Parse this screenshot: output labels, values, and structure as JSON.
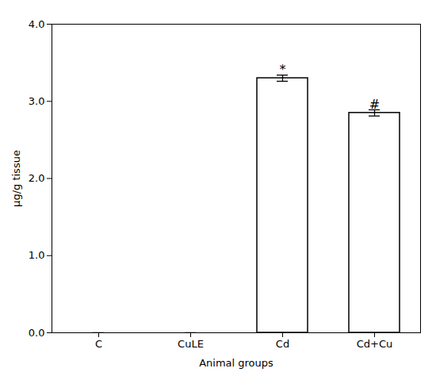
{
  "chart_data": {
    "type": "bar",
    "categories": [
      "C",
      "CuLE",
      "Cd",
      "Cd+Cu"
    ],
    "values": [
      0.0,
      0.0,
      3.3,
      2.85
    ],
    "errors": [
      0.0,
      0.0,
      0.04,
      0.04
    ],
    "color": "#ffffff",
    "annotations": [
      {
        "text": "*",
        "x": "Cd",
        "y": 3.36
      },
      {
        "text": "#",
        "x": "Cd+Cu",
        "y": 2.91
      }
    ],
    "xlabel": "Animal groups",
    "ylabel": "µg/g tissue",
    "ylim": [
      0,
      4
    ],
    "yticks": [
      0,
      1,
      2,
      3,
      4
    ],
    "grid": false
  }
}
